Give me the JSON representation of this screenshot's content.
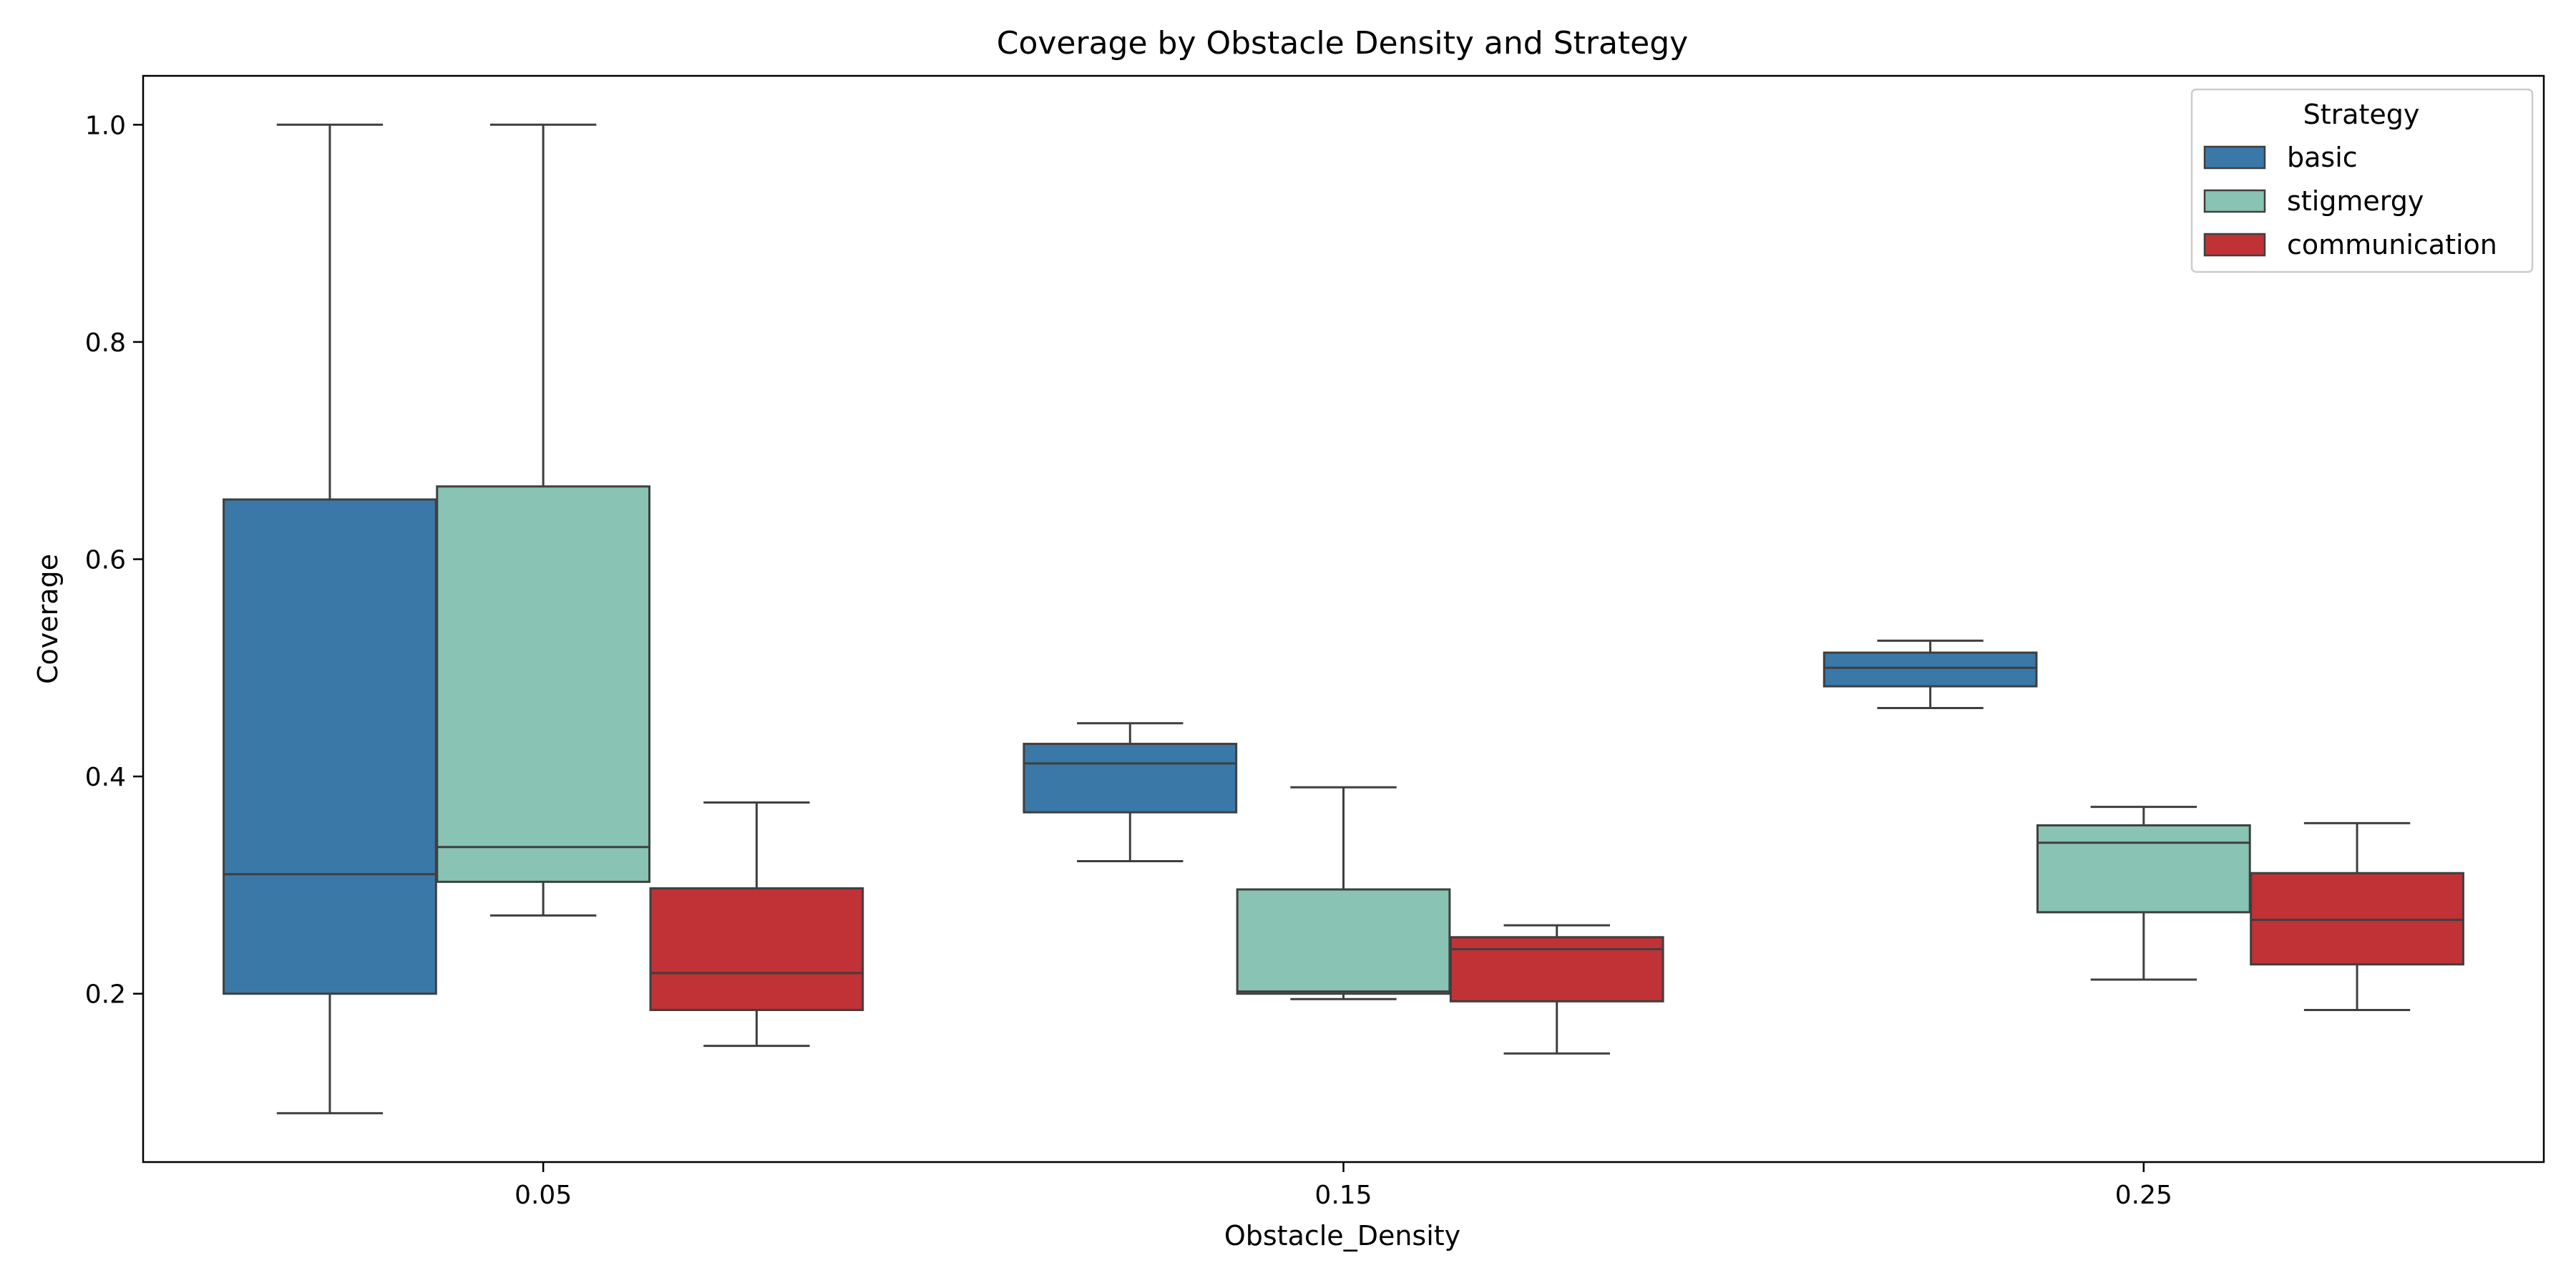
{
  "chart_data": {
    "type": "boxplot",
    "title": "Coverage by Obstacle Density and Strategy",
    "xlabel": "Obstacle_Density",
    "ylabel": "Coverage",
    "ylim": [
      0.045,
      1.045
    ],
    "yticks": [
      "0.2",
      "0.4",
      "0.6",
      "0.8",
      "1.0"
    ],
    "categories": [
      "0.05",
      "0.15",
      "0.25"
    ],
    "legend": {
      "title": "Strategy",
      "position": "top-right"
    },
    "series": [
      {
        "name": "basic",
        "color": "#3a78a8",
        "boxes": [
          {
            "whislo": 0.09,
            "q1": 0.2,
            "med": 0.31,
            "q3": 0.655,
            "whishi": 1.0
          },
          {
            "whislo": 0.322,
            "q1": 0.367,
            "med": 0.412,
            "q3": 0.43,
            "whishi": 0.449
          },
          {
            "whislo": 0.463,
            "q1": 0.483,
            "med": 0.5,
            "q3": 0.514,
            "whishi": 0.525
          }
        ]
      },
      {
        "name": "stigmergy",
        "color": "#88c3b3",
        "boxes": [
          {
            "whislo": 0.272,
            "q1": 0.303,
            "med": 0.335,
            "q3": 0.667,
            "whishi": 1.0
          },
          {
            "whislo": 0.195,
            "q1": 0.2,
            "med": 0.202,
            "q3": 0.296,
            "whishi": 0.39
          },
          {
            "whislo": 0.213,
            "q1": 0.275,
            "med": 0.339,
            "q3": 0.355,
            "whishi": 0.372
          }
        ]
      },
      {
        "name": "communication",
        "color": "#c03235",
        "boxes": [
          {
            "whislo": 0.152,
            "q1": 0.185,
            "med": 0.219,
            "q3": 0.297,
            "whishi": 0.376
          },
          {
            "whislo": 0.145,
            "q1": 0.193,
            "med": 0.241,
            "q3": 0.252,
            "whishi": 0.263
          },
          {
            "whislo": 0.185,
            "q1": 0.227,
            "med": 0.268,
            "q3": 0.311,
            "whishi": 0.357
          }
        ]
      }
    ]
  }
}
